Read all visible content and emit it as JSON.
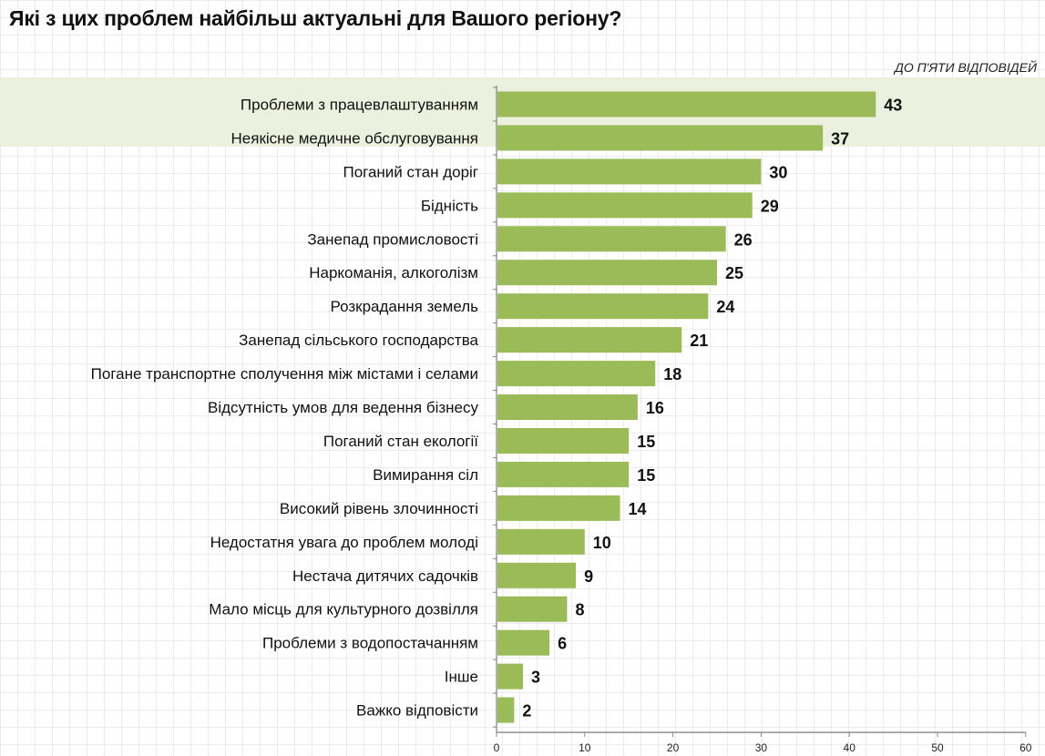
{
  "title": "Які з цих проблем найбільш актуальні для Вашого регіону?",
  "note": "ДО П'ЯТИ ВІДПОВІДЕЙ",
  "colors": {
    "bar": "#9bbb59",
    "highlight": "#ebf1de",
    "axis": "#888888"
  },
  "chart_data": {
    "type": "bar",
    "orientation": "horizontal",
    "categories": [
      "Проблеми з працевлаштуванням",
      "Неякісне медичне обслуговування",
      "Поганий стан доріг",
      "Бідність",
      "Занепад промисловості",
      "Наркоманія, алкоголізм",
      "Розкрадання земель",
      "Занепад сільського господарства",
      "Погане транспортне сполучення між містами і селами",
      "Відсутність умов для ведення бізнесу",
      "Поганий стан екології",
      "Вимирання сіл",
      "Високий рівень злочинності",
      "Недостатня увага до проблем молоді",
      "Нестача дитячих садочків",
      "Мало місць для культурного дозвілля",
      "Проблеми з водопостачанням",
      "Інше",
      "Важко відповісти"
    ],
    "values": [
      43,
      37,
      30,
      29,
      26,
      25,
      24,
      21,
      18,
      16,
      15,
      15,
      14,
      10,
      9,
      8,
      6,
      3,
      2
    ],
    "value_labels": [
      "43",
      "37",
      "30",
      "29",
      "26",
      "25",
      "24",
      "21",
      "18",
      "16",
      "15",
      "15",
      "14",
      "10",
      "9",
      "8",
      "6",
      "3",
      "2"
    ],
    "highlighted": [
      0,
      1
    ],
    "xlim": [
      0,
      60
    ],
    "xticks": [
      0,
      10,
      20,
      30,
      40,
      50,
      60
    ],
    "xtick_labels": [
      "0",
      "10",
      "20",
      "30",
      "40",
      "50",
      "60"
    ],
    "grid": true,
    "legend": "none"
  }
}
